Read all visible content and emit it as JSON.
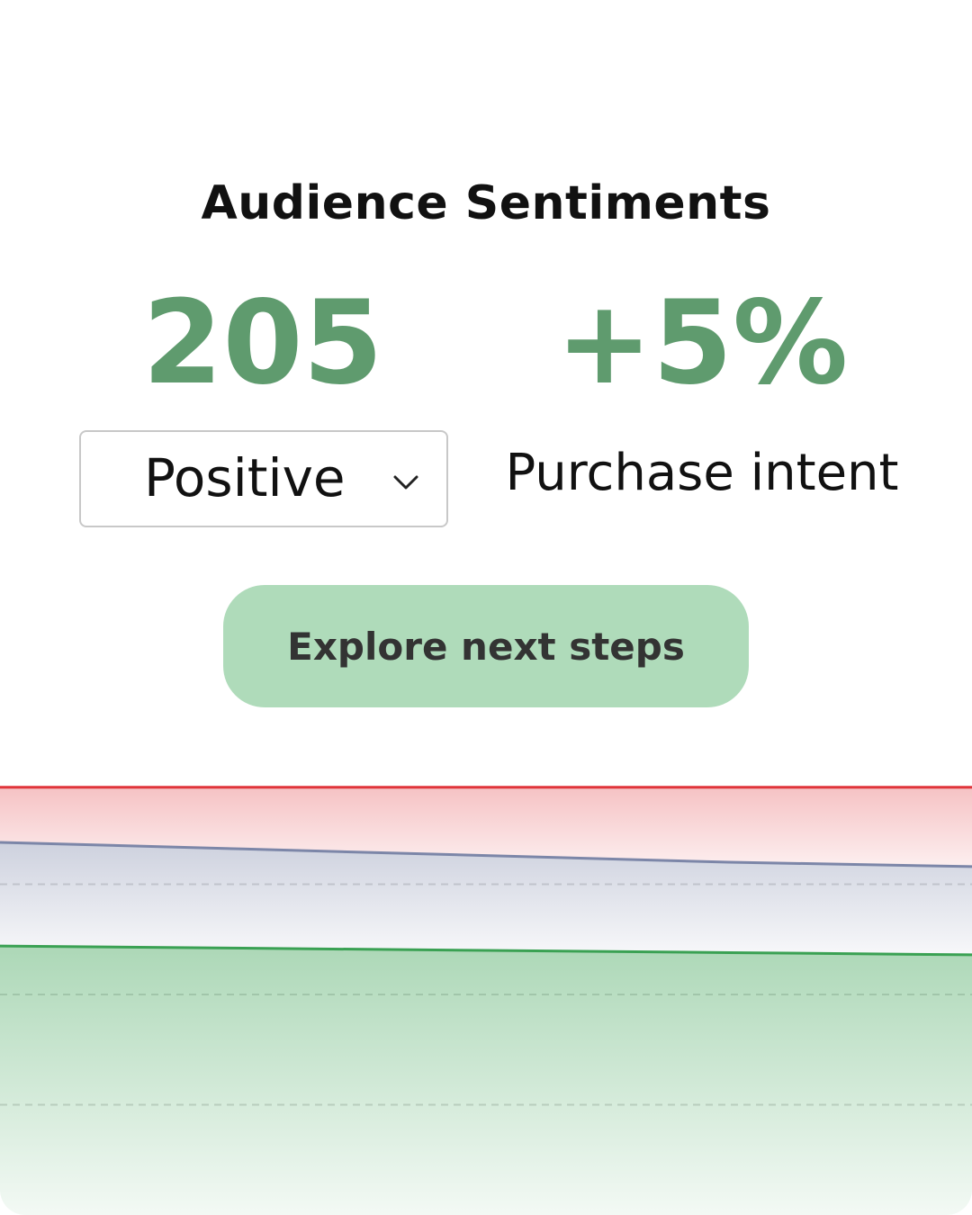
{
  "card": {
    "title": "Audience Sentiments"
  },
  "metrics": {
    "left_value": "205",
    "right_value": "+5%",
    "right_caption": "Purchase intent"
  },
  "dropdown": {
    "selected": "Positive",
    "icon": "chevron-down-icon"
  },
  "cta": {
    "label": "Explore next steps"
  },
  "colors": {
    "metric": "#5f9b6e",
    "cta_bg": "#afdbba",
    "negative": "#e0343a",
    "neutral": "#7c86a8",
    "positive": "#3aa153"
  },
  "chart_data": {
    "type": "area",
    "stacked": true,
    "x": [
      0,
      1,
      2,
      3,
      4
    ],
    "series": [
      {
        "color": "#3aa153",
        "values": [
          61,
          60.5,
          60,
          59.5,
          59
        ]
      },
      {
        "color": "#7c86a8",
        "values": [
          23.5,
          22.5,
          21.5,
          20.5,
          20
        ]
      },
      {
        "color": "#e0343a",
        "values": [
          12.5,
          14,
          15.5,
          17,
          18
        ]
      }
    ],
    "ylim": [
      0,
      100
    ],
    "grid": true
  }
}
